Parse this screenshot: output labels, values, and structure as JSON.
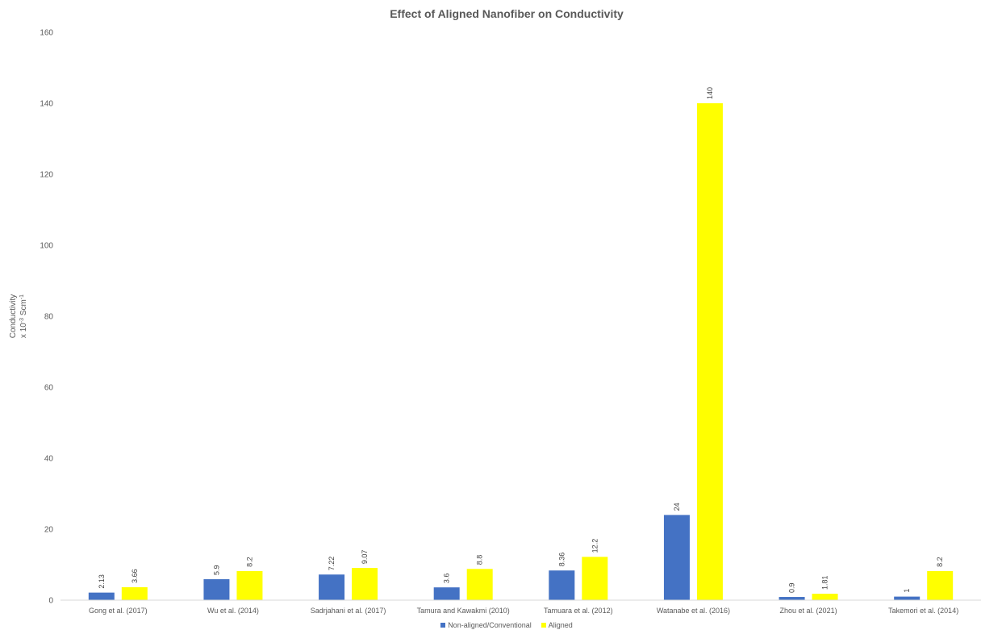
{
  "chart_data": {
    "type": "bar",
    "title": "Effect of Aligned Nanofiber on Conductivity",
    "ylabel_line1": "Conductivity",
    "ylabel_line2": "x 10",
    "ylabel_exp": "-3",
    "ylabel_unit": " Scm",
    "ylabel_unit_exp": "-1",
    "ylim": [
      0,
      160
    ],
    "yticks": [
      0,
      20,
      40,
      60,
      80,
      100,
      120,
      140,
      160
    ],
    "grid": false,
    "legend_position": "bottom",
    "categories": [
      "Gong et al. (2017)",
      "Wu et al. (2014)",
      "Sadrjahani et al. (2017)",
      "Tamura and Kawakmi (2010)",
      "Tamuara et al.  (2012)",
      "Watanabe et al. (2016)",
      "Zhou et al. (2021)",
      "Takemori et al. (2014)"
    ],
    "series": [
      {
        "name": "Non-aligned/Conventional",
        "color": "#4472c4",
        "values": [
          2.13,
          5.9,
          7.22,
          3.6,
          8.36,
          24,
          0.9,
          1
        ],
        "labels": [
          "2.13",
          "5.9",
          "7.22",
          "3.6",
          "8.36",
          "24",
          "0.9",
          "1"
        ]
      },
      {
        "name": "Aligned",
        "color": "#ffff00",
        "values": [
          3.66,
          8.2,
          9.07,
          8.8,
          12.2,
          140,
          1.81,
          8.2
        ],
        "labels": [
          "3.66",
          "8.2",
          "9.07",
          "8.8",
          "12.2",
          "140",
          "1.81",
          "8.2"
        ]
      }
    ]
  }
}
